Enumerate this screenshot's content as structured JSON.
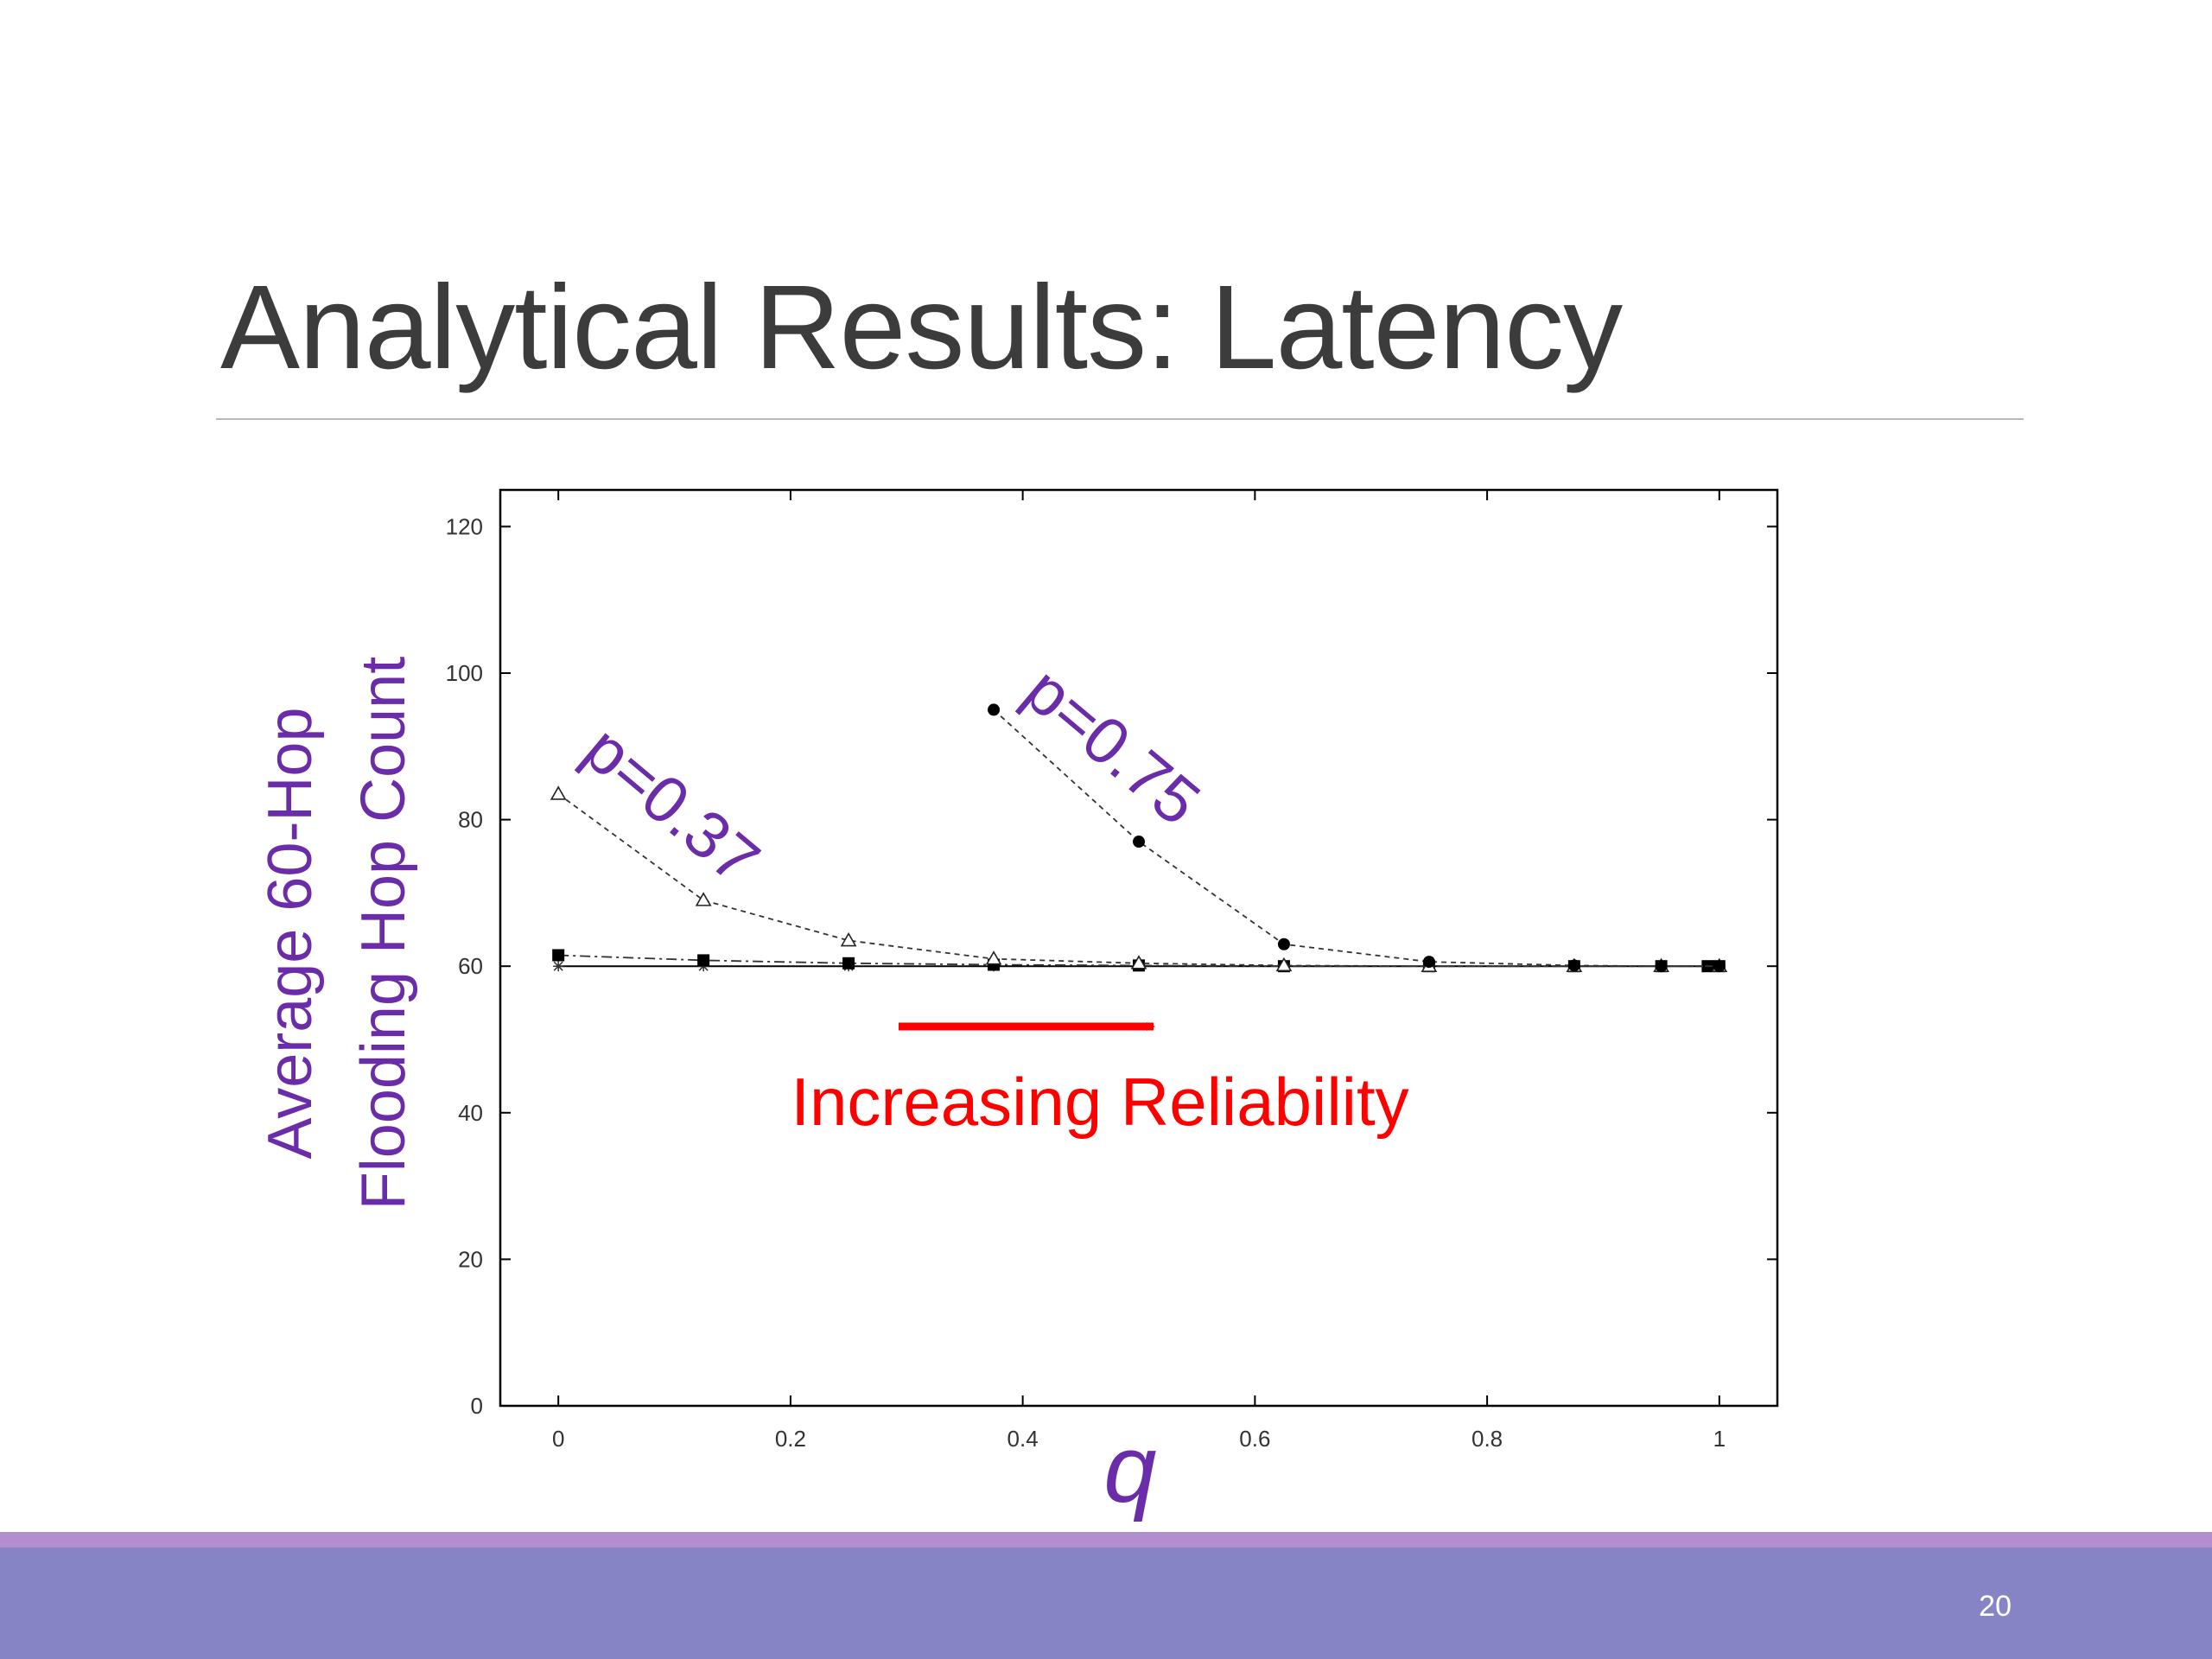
{
  "slide": {
    "title": "Analytical Results: Latency",
    "page_number": "20"
  },
  "colors": {
    "title": "#3c3c3c",
    "annotation_purple": "#6a2ca8",
    "annotation_red": "#ff0000",
    "footer_band": "#8784c6",
    "footer_accent": "#b28ed0"
  },
  "chart_data": {
    "type": "line",
    "title": "",
    "xlabel": "q",
    "ylabel_lines": [
      "Average 60-Hop",
      "Flooding Hop Count"
    ],
    "xlim": [
      -0.05,
      1.05
    ],
    "ylim": [
      0,
      125
    ],
    "x_ticks": [
      0,
      0.2,
      0.4,
      0.6,
      0.8,
      1
    ],
    "x_tick_labels": [
      "0",
      "0.2",
      "0.4",
      "0.6",
      "0.8",
      "1"
    ],
    "y_ticks": [
      0,
      20,
      40,
      60,
      80,
      100,
      120
    ],
    "y_tick_labels": [
      "0",
      "20",
      "40",
      "60",
      "80",
      "100",
      "120"
    ],
    "grid": false,
    "series": [
      {
        "name": "p=0.37",
        "marker": "triangle",
        "line_style": "dashed",
        "x": [
          0,
          0.125,
          0.25,
          0.375,
          0.5,
          0.625,
          0.75,
          0.875,
          0.95,
          1
        ],
        "y": [
          83.5,
          69,
          63.5,
          61,
          60.4,
          60.1,
          60,
          60,
          60,
          60
        ]
      },
      {
        "name": "p=0.75",
        "marker": "circle",
        "line_style": "dashed",
        "x": [
          0.375,
          0.5,
          0.625,
          0.75,
          0.875,
          0.95,
          1
        ],
        "y": [
          95,
          77,
          63,
          60.6,
          60.1,
          60,
          60
        ]
      },
      {
        "name": "",
        "marker": "square",
        "line_style": "dashdot",
        "x": [
          0,
          0.125,
          0.25,
          0.375,
          0.5,
          0.625,
          0.75,
          0.875,
          0.95,
          0.99,
          1
        ],
        "y": [
          61.5,
          60.8,
          60.4,
          60.2,
          60.1,
          60,
          60,
          60,
          60,
          60,
          60
        ]
      },
      {
        "name": "",
        "marker": "star",
        "line_style": "solid",
        "x": [
          0,
          0.125,
          0.25,
          0.375,
          0.5,
          0.625,
          0.75,
          0.875,
          0.95,
          1
        ],
        "y": [
          60,
          60,
          60,
          60,
          60,
          60,
          60,
          60,
          60,
          60
        ]
      }
    ],
    "annotations": [
      {
        "text": "p=0.37",
        "color": "#6a2ca8"
      },
      {
        "text": "p=0.75",
        "color": "#6a2ca8"
      },
      {
        "text": "Increasing Reliability",
        "color": "#ff0000",
        "arrow": "right"
      }
    ]
  }
}
